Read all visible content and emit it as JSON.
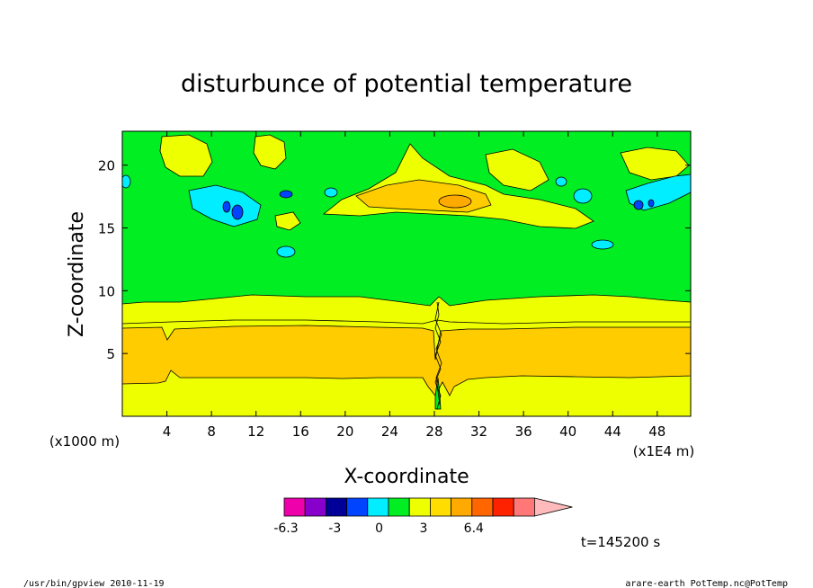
{
  "chart_data": {
    "type": "contour",
    "title": "disturbunce of potential temperature",
    "xlabel": "X-coordinate",
    "ylabel": "Z-coordinate",
    "x_units": "(x1E4 m)",
    "y_units": "(x1000 m)",
    "xlim": [
      0,
      51
    ],
    "ylim": [
      0,
      22.7
    ],
    "x_ticks": [
      4,
      8,
      12,
      16,
      20,
      24,
      28,
      32,
      36,
      40,
      44,
      48
    ],
    "y_ticks": [
      5,
      10,
      15,
      20
    ],
    "colorbar": {
      "colors": [
        "#ee00aa",
        "#8800cc",
        "#000099",
        "#0044ff",
        "#00eeff",
        "#00ee22",
        "#eeff00",
        "#ffdd00",
        "#ffaa00",
        "#ff6600",
        "#ff2200",
        "#ff7777",
        "#ffbbbb"
      ],
      "labels": [
        "-6.3",
        "-3",
        "0",
        "3",
        "6.4"
      ],
      "label_positions": [
        -6.3,
        -3,
        0,
        3,
        6.4
      ],
      "levels": [
        -6.3,
        -4.9,
        -3.5,
        -2.1,
        -0.7,
        0.7,
        2.1,
        3.5,
        4.9,
        6.4
      ]
    },
    "annotation": "t=145200 s"
  },
  "footer": {
    "left": "/usr/bin/gpview   2010-11-19",
    "right": "arare-earth_PotTemp.nc@PotTemp"
  }
}
